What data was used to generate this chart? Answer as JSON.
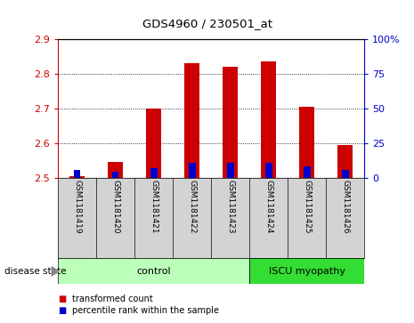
{
  "title": "GDS4960 / 230501_at",
  "samples": [
    "GSM1181419",
    "GSM1181420",
    "GSM1181421",
    "GSM1181422",
    "GSM1181423",
    "GSM1181424",
    "GSM1181425",
    "GSM1181426"
  ],
  "red_values": [
    2.505,
    2.545,
    2.7,
    2.83,
    2.82,
    2.835,
    2.705,
    2.595
  ],
  "blue_values": [
    2.522,
    2.518,
    2.528,
    2.542,
    2.542,
    2.542,
    2.532,
    2.522
  ],
  "ymin": 2.5,
  "ymax": 2.9,
  "y_ticks_left": [
    2.5,
    2.6,
    2.7,
    2.8,
    2.9
  ],
  "y_ticks_right": [
    0,
    25,
    50,
    75,
    100
  ],
  "groups": [
    {
      "label": "control",
      "start": 0,
      "end": 4,
      "color": "#bbffbb"
    },
    {
      "label": "ISCU myopathy",
      "start": 5,
      "end": 7,
      "color": "#33dd33"
    }
  ],
  "bar_width": 0.4,
  "red_color": "#cc0000",
  "blue_color": "#0000cc",
  "bg_color": "#ffffff",
  "plot_bg": "#ffffff",
  "gray_box": "#d3d3d3",
  "legend_red_label": "transformed count",
  "legend_blue_label": "percentile rank within the sample",
  "disease_state_label": "disease state"
}
